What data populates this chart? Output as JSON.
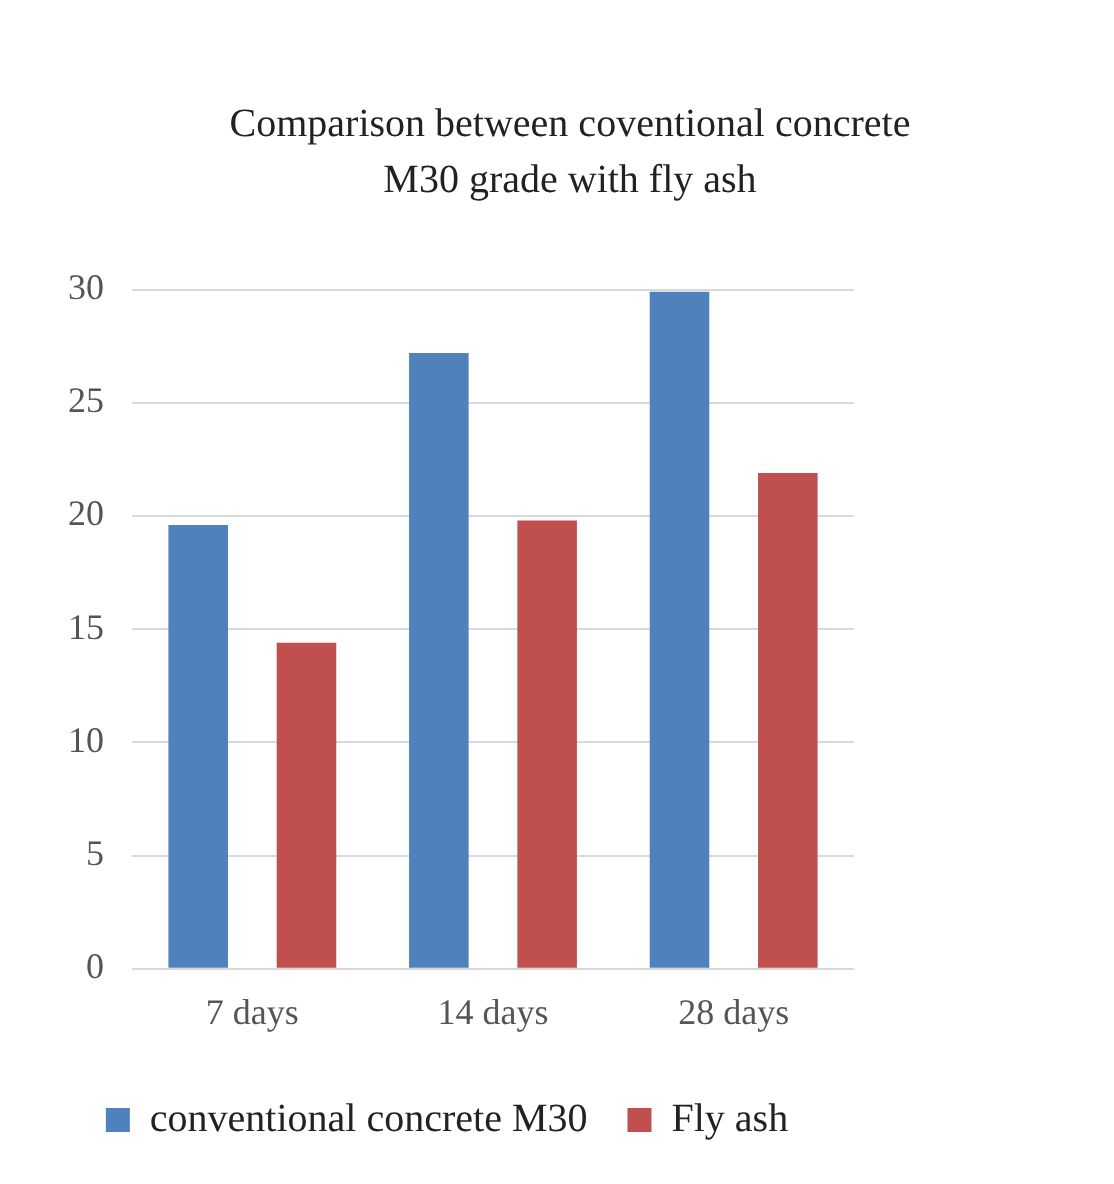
{
  "chart_data": {
    "type": "bar",
    "title": "Comparison between coventional concrete M30 grade with fly ash",
    "categories": [
      "7 days",
      "14 days",
      "28 days"
    ],
    "series": [
      {
        "name": "conventional concrete M30",
        "color": "#4f81bd",
        "values": [
          19.6,
          27.2,
          29.9
        ]
      },
      {
        "name": "Fly ash",
        "color": "#c0504d",
        "values": [
          14.4,
          19.8,
          21.9
        ]
      }
    ],
    "ylim": [
      0,
      30
    ],
    "yticks": [
      0,
      5,
      10,
      15,
      20,
      25,
      30
    ],
    "grid": "y",
    "legend": "bottom"
  }
}
